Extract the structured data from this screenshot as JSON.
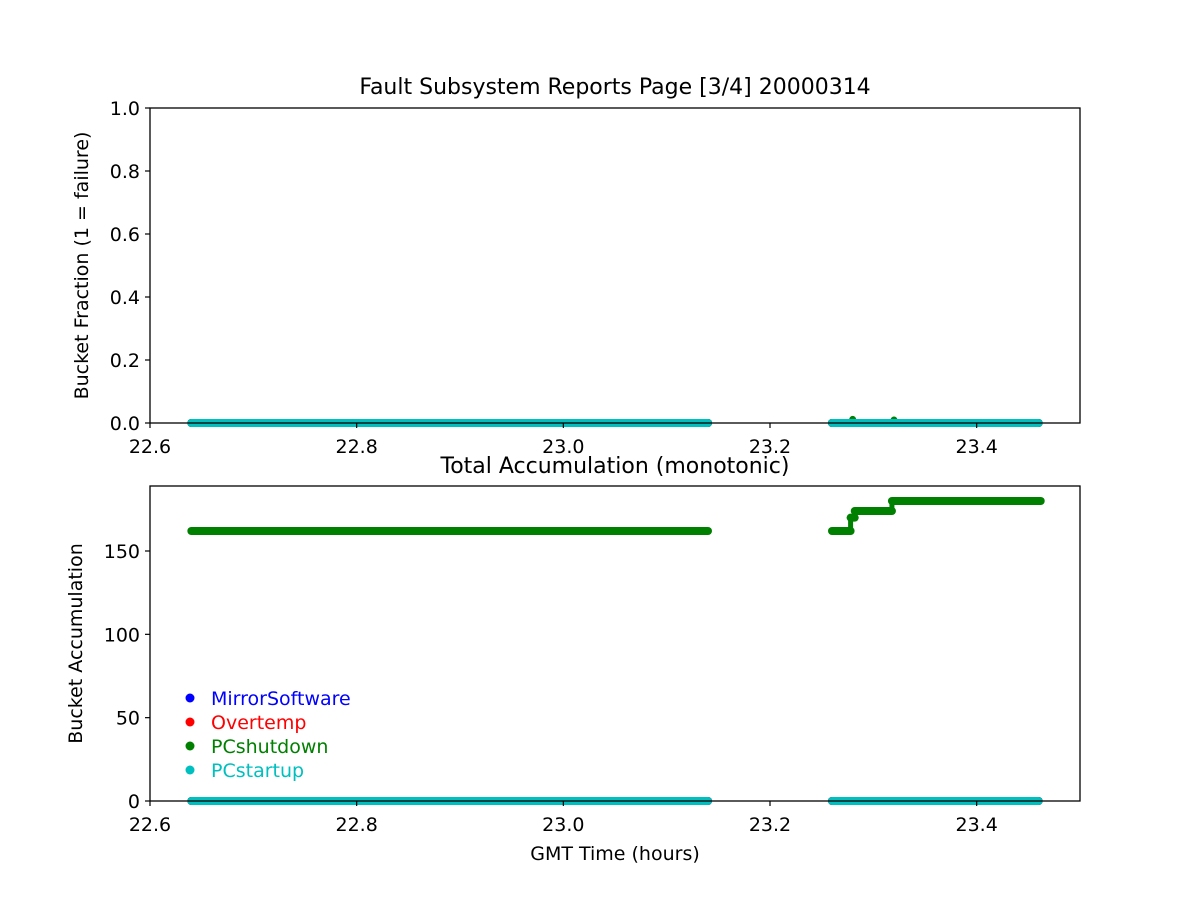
{
  "chart_data": [
    {
      "type": "scatter",
      "title": "Fault Subsystem Reports Page [3/4] 20000314",
      "xlabel": "",
      "ylabel": "Bucket Fraction (1 = failure)",
      "xlim": [
        22.6,
        23.5
      ],
      "ylim": [
        0,
        1
      ],
      "x_ticks": [
        "22.6",
        "22.8",
        "23.0",
        "23.2",
        "23.4"
      ],
      "y_ticks": [
        "0.0",
        "0.2",
        "0.4",
        "0.6",
        "0.8",
        "1.0"
      ],
      "grid": false,
      "series": [
        {
          "name": "MirrorSoftware",
          "color": "#0000ff",
          "segments": [
            {
              "x": [
                22.64,
                23.14
              ],
              "y": [
                0,
                0
              ]
            },
            {
              "x": [
                23.26,
                23.46
              ],
              "y": [
                0,
                0
              ]
            }
          ]
        },
        {
          "name": "Overtemp",
          "color": "#ff0000",
          "segments": [
            {
              "x": [
                22.64,
                23.14
              ],
              "y": [
                0,
                0
              ]
            },
            {
              "x": [
                23.26,
                23.46
              ],
              "y": [
                0,
                0
              ]
            }
          ]
        },
        {
          "name": "PCshutdown",
          "color": "#008000",
          "segments": [
            {
              "x": [
                22.64,
                23.14
              ],
              "y": [
                0,
                0
              ]
            },
            {
              "x": [
                23.26,
                23.46
              ],
              "y": [
                0,
                0
              ]
            }
          ],
          "spikes": [
            {
              "x": 23.28,
              "y": 0.005
            },
            {
              "x": 23.32,
              "y": 0.003
            }
          ]
        },
        {
          "name": "PCstartup",
          "color": "#00bfbf",
          "segments": [
            {
              "x": [
                22.64,
                23.14
              ],
              "y": [
                0,
                0
              ]
            },
            {
              "x": [
                23.26,
                23.46
              ],
              "y": [
                0,
                0
              ]
            }
          ]
        }
      ]
    },
    {
      "type": "scatter",
      "title": "Total Accumulation (monotonic)",
      "xlabel": "GMT Time (hours)",
      "ylabel": "Bucket Accumulation",
      "xlim": [
        22.6,
        23.5
      ],
      "ylim": [
        0,
        189
      ],
      "x_ticks": [
        "22.6",
        "22.8",
        "23.0",
        "23.2",
        "23.4"
      ],
      "y_ticks": [
        "0",
        "50",
        "100",
        "150"
      ],
      "grid": false,
      "legend": {
        "placement": "lower-left"
      },
      "series": [
        {
          "name": "MirrorSoftware",
          "color": "#0000ff",
          "segments": [
            {
              "x": [
                22.64,
                23.14
              ],
              "y": [
                0,
                0
              ]
            },
            {
              "x": [
                23.26,
                23.46
              ],
              "y": [
                0,
                0
              ]
            }
          ]
        },
        {
          "name": "Overtemp",
          "color": "#ff0000",
          "segments": [
            {
              "x": [
                22.64,
                23.14
              ],
              "y": [
                0,
                0
              ]
            },
            {
              "x": [
                23.26,
                23.46
              ],
              "y": [
                0,
                0
              ]
            }
          ]
        },
        {
          "name": "PCshutdown",
          "color": "#008000",
          "steps": [
            {
              "x": [
                22.64,
                23.14
              ],
              "y": 162
            },
            {
              "x": [
                23.26,
                23.278
              ],
              "y": 162
            },
            {
              "x": [
                23.278,
                23.282
              ],
              "y": 170
            },
            {
              "x": [
                23.282,
                23.318
              ],
              "y": 174
            },
            {
              "x": [
                23.318,
                23.462
              ],
              "y": 180
            }
          ]
        },
        {
          "name": "PCstartup",
          "color": "#00bfbf",
          "segments": [
            {
              "x": [
                22.64,
                23.14
              ],
              "y": [
                0,
                0
              ]
            },
            {
              "x": [
                23.26,
                23.46
              ],
              "y": [
                0,
                0
              ]
            }
          ]
        }
      ]
    }
  ]
}
